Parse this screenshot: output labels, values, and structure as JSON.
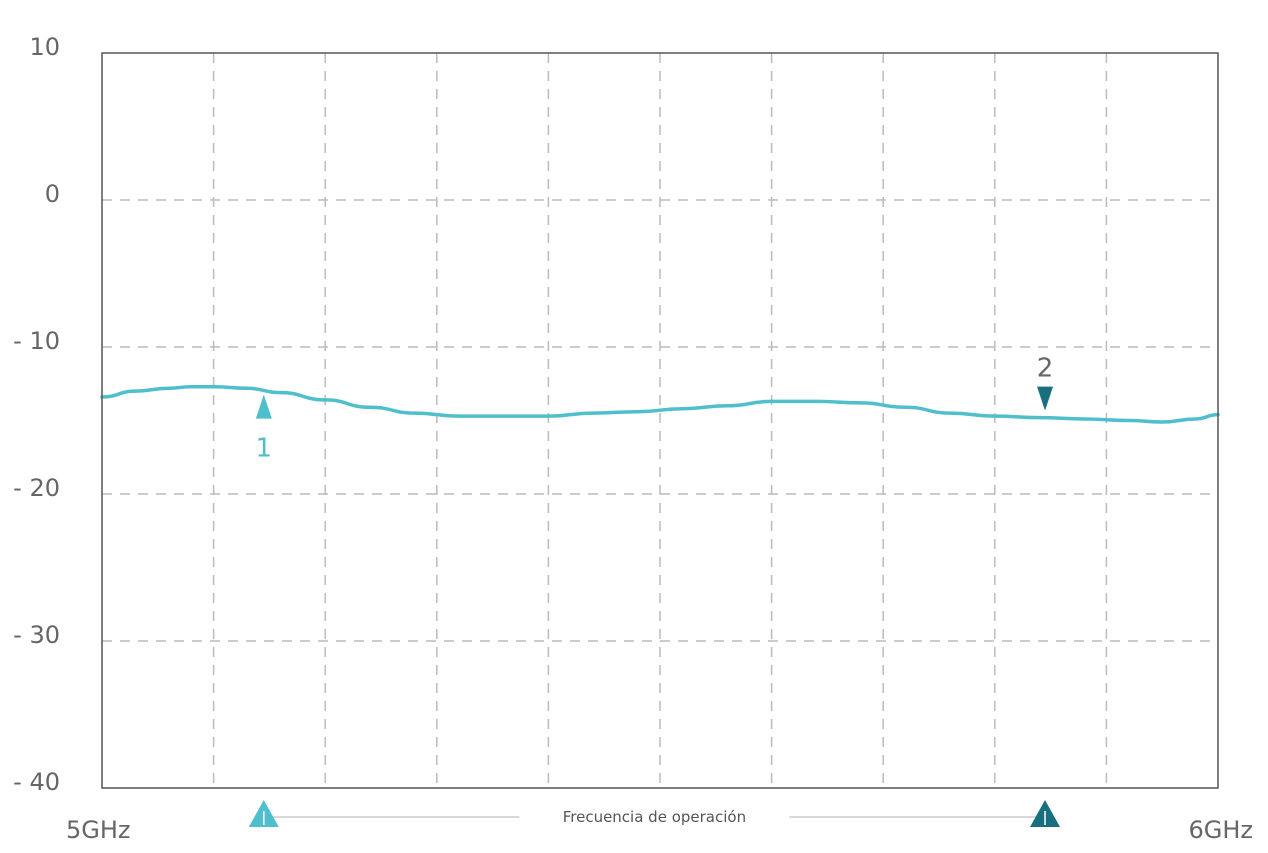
{
  "chart_data": {
    "type": "line",
    "title": "",
    "xlabel": "",
    "ylabel": "",
    "xlim": [
      5,
      6
    ],
    "ylim": [
      -40,
      10
    ],
    "x_unit": "GHz",
    "y_ticks": [
      10,
      0,
      -10,
      -20,
      -30,
      -40
    ],
    "y_tick_labels": [
      "10",
      "0",
      "- 10",
      "- 20",
      "- 30",
      "- 40"
    ],
    "x_tick_labels": [
      "5GHz",
      "6GHz"
    ],
    "x_gridlines": 10,
    "grid": true,
    "grid_style": "dashed",
    "series": [
      {
        "color": "#4fbfcb",
        "x": [
          5.0,
          5.03,
          5.06,
          5.08,
          5.1,
          5.13,
          5.16,
          5.2,
          5.24,
          5.28,
          5.32,
          5.36,
          5.4,
          5.44,
          5.48,
          5.52,
          5.56,
          5.6,
          5.64,
          5.68,
          5.72,
          5.76,
          5.8,
          5.84,
          5.88,
          5.92,
          5.95,
          5.98,
          6.0
        ],
        "y": [
          -13.4,
          -13.0,
          -12.8,
          -12.7,
          -12.7,
          -12.8,
          -13.1,
          -13.6,
          -14.1,
          -14.5,
          -14.7,
          -14.7,
          -14.7,
          -14.5,
          -14.4,
          -14.2,
          -14.0,
          -13.7,
          -13.7,
          -13.8,
          -14.1,
          -14.5,
          -14.7,
          -14.8,
          -14.9,
          -15.0,
          -15.1,
          -14.9,
          -14.6
        ]
      }
    ],
    "markers": [
      {
        "label": "1",
        "x": 5.145,
        "y": -12.9,
        "direction": "up",
        "color": "#4fbfcb"
      },
      {
        "label": "2",
        "x": 5.845,
        "y": -14.4,
        "direction": "down",
        "color": "#1a6f7f"
      }
    ],
    "band": {
      "label": "Frecuencia de operación",
      "x_start": 5.145,
      "x_end": 5.845,
      "start_color": "#4fbfcb",
      "end_color": "#1a6f7f"
    }
  }
}
